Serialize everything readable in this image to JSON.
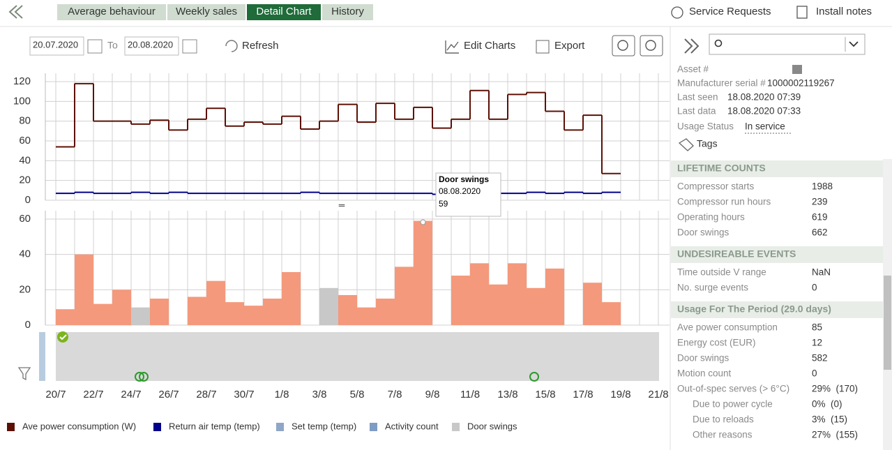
{
  "nav": {
    "tabs": [
      "Average behaviour",
      "Weekly sales",
      "Detail Chart",
      "History"
    ],
    "active_tab": 2,
    "links": [
      "Service Requests",
      "Install notes"
    ]
  },
  "toolbar": {
    "from": "20.07.2020",
    "to_label": "To",
    "to": "20.08.2020",
    "refresh": "Refresh",
    "edit_charts": "Edit Charts",
    "export": "Export"
  },
  "chart_data": [
    {
      "type": "line",
      "step": true,
      "ylim": [
        0,
        120
      ],
      "yticks": [
        0,
        20,
        40,
        60,
        80,
        100,
        120
      ],
      "grid": true,
      "series": [
        {
          "color": "#5c1005",
          "values": [
            54,
            118,
            80,
            80,
            77,
            81,
            71,
            82,
            93,
            75,
            79,
            77,
            85,
            72,
            80,
            97,
            79,
            98,
            82,
            94,
            73,
            82,
            111,
            82,
            107,
            109,
            90,
            71,
            86,
            27,
            null,
            null,
            null
          ]
        },
        {
          "color": "#00008b",
          "values": [
            7,
            8,
            7,
            7,
            8,
            7,
            8,
            7,
            7,
            7,
            7,
            7,
            7,
            8,
            7,
            7,
            7,
            7,
            7,
            7,
            6,
            7,
            7,
            7,
            7,
            8,
            7,
            8,
            7,
            8,
            null,
            null,
            null
          ]
        }
      ]
    },
    {
      "type": "bar",
      "categories": [
        "20/7",
        null,
        "22/7",
        null,
        "24/7",
        null,
        "26/7",
        null,
        "28/7",
        null,
        "30/7",
        null,
        "1/8",
        null,
        "3/8",
        null,
        "5/8",
        null,
        "7/8",
        null,
        "9/8",
        null,
        "11/8",
        null,
        "13/8",
        null,
        "15/8",
        null,
        "17/8",
        null,
        "19/8",
        null,
        "21/8"
      ],
      "values": [
        9,
        40,
        12,
        20,
        10,
        15,
        null,
        16,
        25,
        13,
        11,
        15,
        30,
        null,
        21,
        17,
        10,
        15,
        33,
        59,
        null,
        28,
        35,
        23,
        35,
        21,
        32,
        null,
        24,
        13,
        null,
        null,
        null
      ],
      "bar_colors": [
        "#f4997c",
        "#f4997c",
        "#f4997c",
        "#f4997c",
        "#c8c8c8",
        "#f4997c",
        null,
        "#f4997c",
        "#f4997c",
        "#f4997c",
        "#f4997c",
        "#f4997c",
        "#f4997c",
        null,
        "#c8c8c8",
        "#f4997c",
        "#f4997c",
        "#f4997c",
        "#f4997c",
        "#f4997c",
        null,
        "#f4997c",
        "#f4997c",
        "#f4997c",
        "#f4997c",
        "#f4997c",
        "#f4997c",
        null,
        "#f4997c",
        "#f4997c",
        null,
        null,
        null
      ],
      "ylim": [
        0,
        60
      ],
      "yticks": [
        0,
        20,
        40,
        60
      ],
      "grid": true,
      "tooltip": {
        "title": "Door swings",
        "date": "08.08.2020",
        "value": "59",
        "index": 19
      }
    }
  ],
  "legend": [
    {
      "label": "Ave power consumption (W)",
      "color": "#5c1005"
    },
    {
      "label": "Return air temp (temp)",
      "color": "#00008b"
    },
    {
      "label": "Set temp (temp)",
      "color": "#8fa6c6"
    },
    {
      "label": "Activity count",
      "color": "#7f9cc4"
    },
    {
      "label": "Door swings",
      "color": "#c8c8c8"
    }
  ],
  "details": [
    {
      "label": "Asset #"
    },
    {
      "label": "Manufacturer serial #",
      "value": "1000002119267"
    },
    {
      "label": "Last seen",
      "value": "18.08.2020 07:39"
    },
    {
      "label": "Last data",
      "value": "18.08.2020 07:33"
    },
    {
      "label": "Usage Status",
      "value": "In service"
    }
  ],
  "tags": "Tags",
  "sections": [
    {
      "title": "LIFETIME COUNTS",
      "rows": [
        {
          "label": "Compressor starts",
          "value": "1988"
        },
        {
          "label": "Compressor run hours",
          "value": "239"
        },
        {
          "label": "Operating hours",
          "value": "619"
        },
        {
          "label": "Door swings",
          "value": "662"
        }
      ]
    },
    {
      "title": "UNDESIREABLE EVENTS",
      "rows": [
        {
          "label": "Time outside V range",
          "value": "NaN"
        },
        {
          "label": "No. surge events",
          "value": "0"
        }
      ]
    },
    {
      "title": "Usage For The Period (29.0 days)",
      "rows": [
        {
          "label": "Ave power consumption",
          "value": "85"
        },
        {
          "label": "Energy cost (EUR)",
          "value": "12"
        },
        {
          "label": "Door swings",
          "value": "582"
        },
        {
          "label": "Motion count",
          "value": "0"
        },
        {
          "label": "Out-of-spec serves (> 6°C)",
          "value": "29%  (170)"
        },
        {
          "label": "Due to power cycle",
          "value": "0%  (0)",
          "indent": true
        },
        {
          "label": "Due to reloads",
          "value": "3%  (15)",
          "indent": true
        },
        {
          "label": "Other reasons",
          "value": "27%  (155)",
          "indent": true
        }
      ]
    }
  ]
}
